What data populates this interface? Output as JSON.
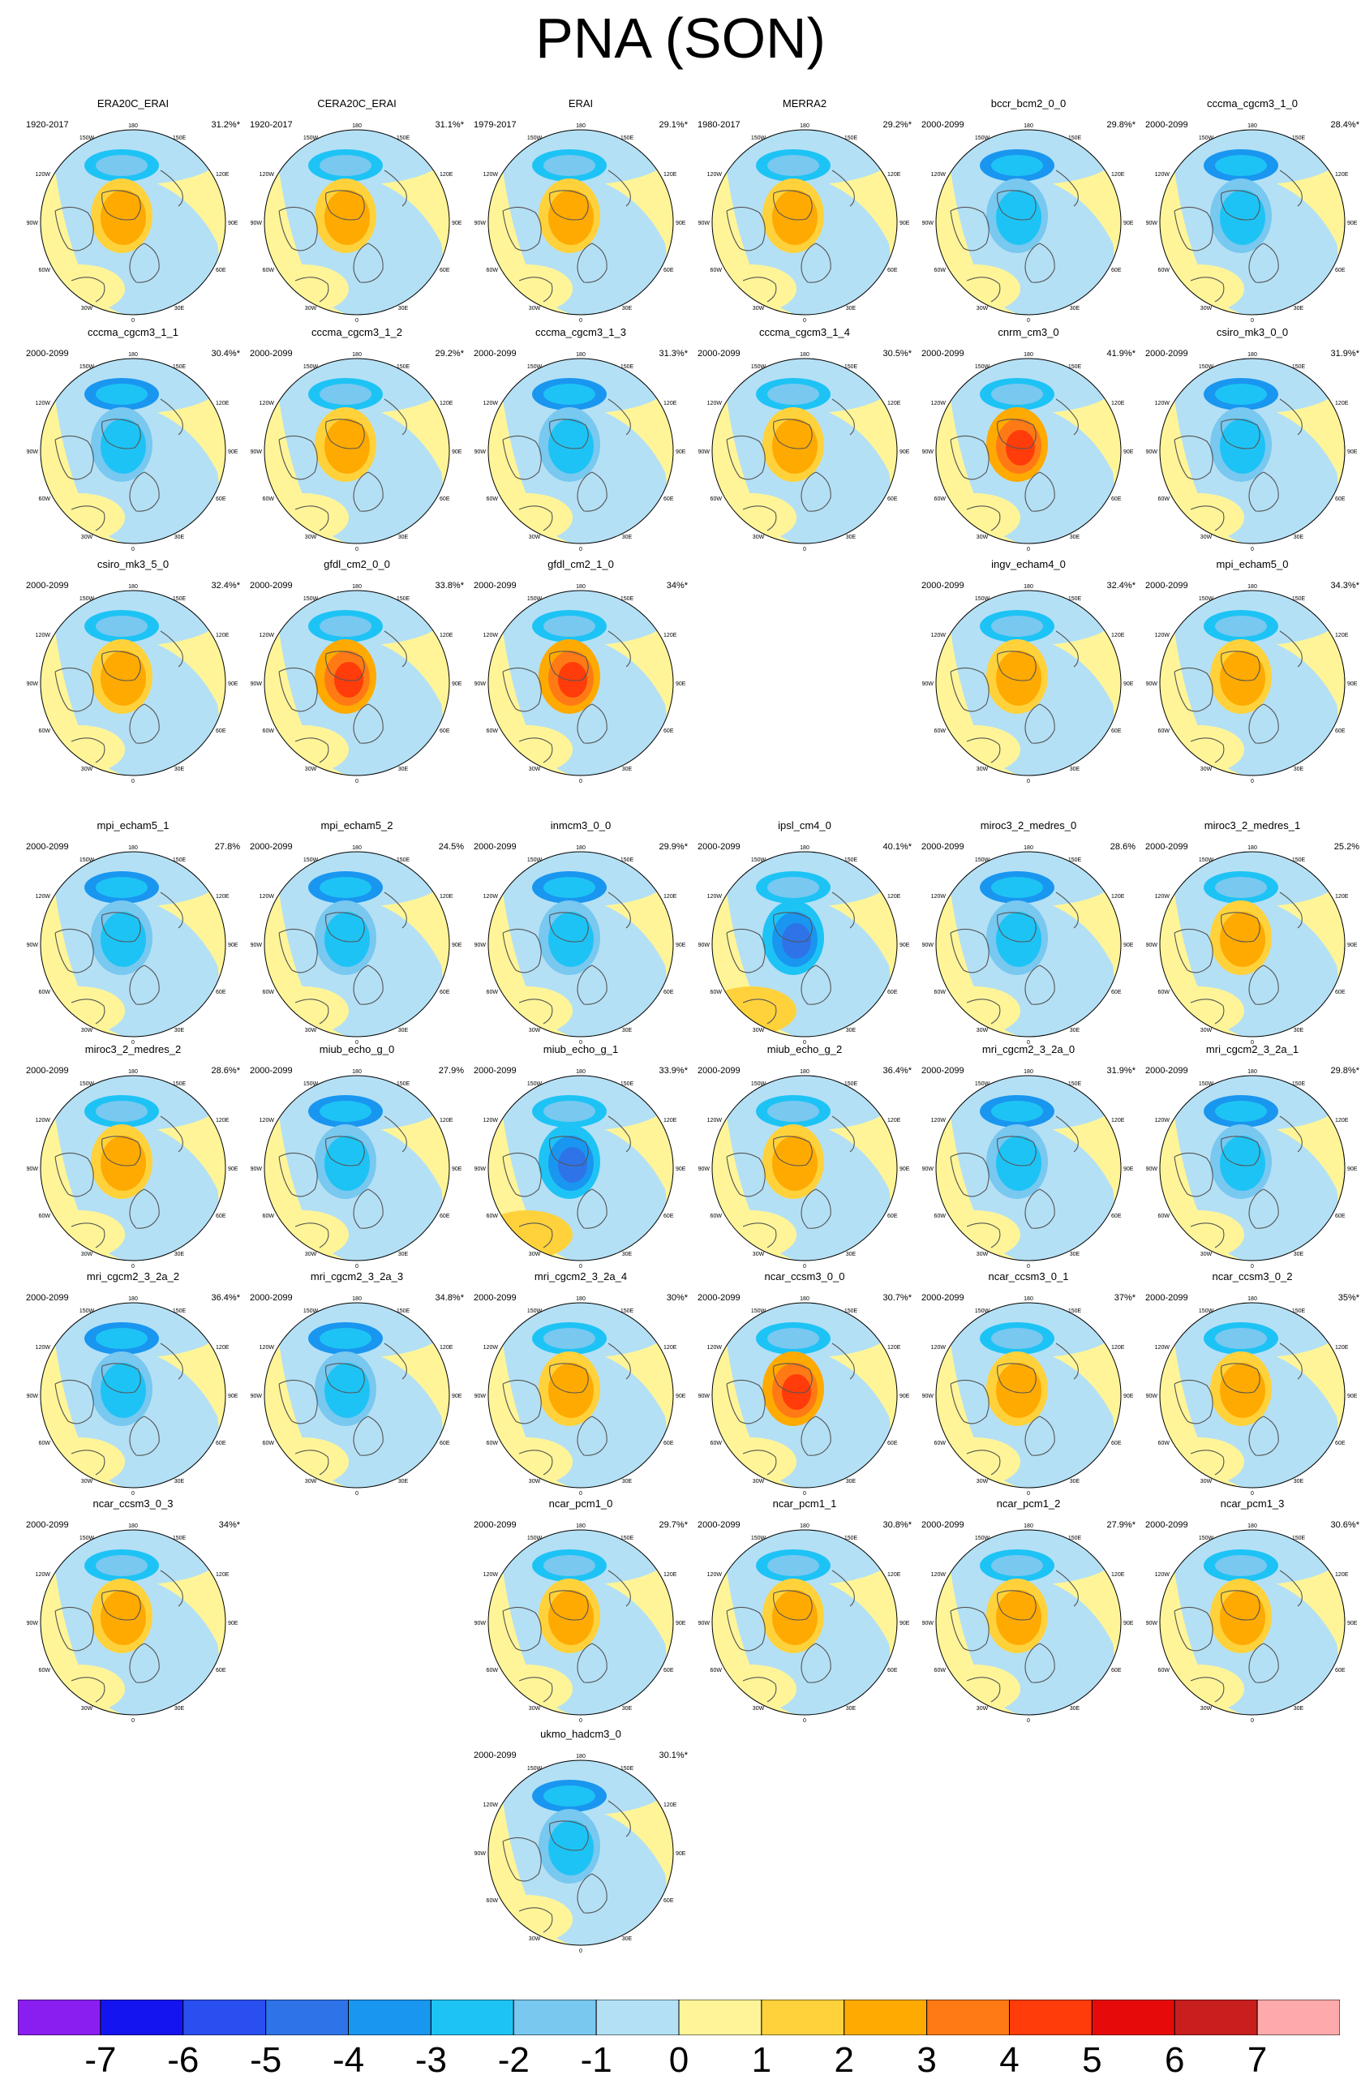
{
  "title": "PNA (SON)",
  "map_labels": {
    "top": "180",
    "bottom": "0",
    "left": "90W",
    "right": "90E",
    "upper_left": "120W",
    "upper_left_inner": "150W",
    "upper_right_inner": "150E",
    "upper_right": "120E",
    "lower_left": "60W",
    "lower_left_inner": "30W",
    "lower_right_inner": "30E",
    "lower_right": "60E"
  },
  "colors": {
    "land_outline": "#555555",
    "levels": [
      "#8a1ef0",
      "#1414f0",
      "#2a4ff0",
      "#2f73e8",
      "#1996f0",
      "#1ec3f5",
      "#78c8f0",
      "#b4e0f5",
      "#fff598",
      "#ffd23c",
      "#ffaa00",
      "#ff7a14",
      "#ff3c0a",
      "#e60a0a",
      "#c81e1e",
      "#ffaaaa"
    ]
  },
  "colorbar": {
    "labels": [
      "-7",
      "-6",
      "-5",
      "-4",
      "-3",
      "-2",
      "-1",
      "0",
      "1",
      "2",
      "3",
      "4",
      "5",
      "6",
      "7"
    ]
  },
  "panels": [
    {
      "name": "ERA20C_ERAI",
      "period": "1920-2017",
      "pct": "31.2%*",
      "row": 0,
      "col": 0,
      "pattern": "pos"
    },
    {
      "name": "CERA20C_ERAI",
      "period": "1920-2017",
      "pct": "31.1%*",
      "row": 0,
      "col": 1,
      "pattern": "pos"
    },
    {
      "name": "ERAI",
      "period": "1979-2017",
      "pct": "29.1%*",
      "row": 0,
      "col": 2,
      "pattern": "pos"
    },
    {
      "name": "MERRA2",
      "period": "1980-2017",
      "pct": "29.2%*",
      "row": 0,
      "col": 3,
      "pattern": "pos"
    },
    {
      "name": "bccr_bcm2_0_0",
      "period": "2000-2099",
      "pct": "29.8%*",
      "row": 0,
      "col": 4,
      "pattern": "neg"
    },
    {
      "name": "cccma_cgcm3_1_0",
      "period": "2000-2099",
      "pct": "28.4%*",
      "row": 0,
      "col": 5,
      "pattern": "neg"
    },
    {
      "name": "cccma_cgcm3_1_1",
      "period": "2000-2099",
      "pct": "30.4%*",
      "row": 1,
      "col": 0,
      "pattern": "neg"
    },
    {
      "name": "cccma_cgcm3_1_2",
      "period": "2000-2099",
      "pct": "29.2%*",
      "row": 1,
      "col": 1,
      "pattern": "pos"
    },
    {
      "name": "cccma_cgcm3_1_3",
      "period": "2000-2099",
      "pct": "31.3%*",
      "row": 1,
      "col": 2,
      "pattern": "neg"
    },
    {
      "name": "cccma_cgcm3_1_4",
      "period": "2000-2099",
      "pct": "30.5%*",
      "row": 1,
      "col": 3,
      "pattern": "pos"
    },
    {
      "name": "cnrm_cm3_0",
      "period": "2000-2099",
      "pct": "41.9%*",
      "row": 1,
      "col": 4,
      "pattern": "strongpos"
    },
    {
      "name": "csiro_mk3_0_0",
      "period": "2000-2099",
      "pct": "31.9%*",
      "row": 1,
      "col": 5,
      "pattern": "neg"
    },
    {
      "name": "csiro_mk3_5_0",
      "period": "2000-2099",
      "pct": "32.4%*",
      "row": 2,
      "col": 0,
      "pattern": "pos"
    },
    {
      "name": "gfdl_cm2_0_0",
      "period": "2000-2099",
      "pct": "33.8%*",
      "row": 2,
      "col": 1,
      "pattern": "strongpos"
    },
    {
      "name": "gfdl_cm2_1_0",
      "period": "2000-2099",
      "pct": "34%*",
      "row": 2,
      "col": 2,
      "pattern": "strongpos"
    },
    {
      "name": "ingv_echam4_0",
      "period": "2000-2099",
      "pct": "32.4%*",
      "row": 2,
      "col": 4,
      "pattern": "pos"
    },
    {
      "name": "mpi_echam5_0",
      "period": "2000-2099",
      "pct": "34.3%*",
      "row": 2,
      "col": 5,
      "pattern": "pos"
    },
    {
      "name": "mpi_echam5_1",
      "period": "2000-2099",
      "pct": "27.8%",
      "row": 3,
      "col": 0,
      "pattern": "neg"
    },
    {
      "name": "mpi_echam5_2",
      "period": "2000-2099",
      "pct": "24.5%",
      "row": 3,
      "col": 1,
      "pattern": "neg"
    },
    {
      "name": "inmcm3_0_0",
      "period": "2000-2099",
      "pct": "29.9%*",
      "row": 3,
      "col": 2,
      "pattern": "neg"
    },
    {
      "name": "ipsl_cm4_0",
      "period": "2000-2099",
      "pct": "40.1%*",
      "row": 3,
      "col": 3,
      "pattern": "strongneg"
    },
    {
      "name": "miroc3_2_medres_0",
      "period": "2000-2099",
      "pct": "28.6%",
      "row": 3,
      "col": 4,
      "pattern": "neg"
    },
    {
      "name": "miroc3_2_medres_1",
      "period": "2000-2099",
      "pct": "25.2%",
      "row": 3,
      "col": 5,
      "pattern": "pos"
    },
    {
      "name": "miroc3_2_medres_2",
      "period": "2000-2099",
      "pct": "28.6%*",
      "row": 4,
      "col": 0,
      "pattern": "pos"
    },
    {
      "name": "miub_echo_g_0",
      "period": "2000-2099",
      "pct": "27.9%",
      "row": 4,
      "col": 1,
      "pattern": "neg"
    },
    {
      "name": "miub_echo_g_1",
      "period": "2000-2099",
      "pct": "33.9%*",
      "row": 4,
      "col": 2,
      "pattern": "strongneg"
    },
    {
      "name": "miub_echo_g_2",
      "period": "2000-2099",
      "pct": "36.4%*",
      "row": 4,
      "col": 3,
      "pattern": "pos"
    },
    {
      "name": "mri_cgcm2_3_2a_0",
      "period": "2000-2099",
      "pct": "31.9%*",
      "row": 4,
      "col": 4,
      "pattern": "neg"
    },
    {
      "name": "mri_cgcm2_3_2a_1",
      "period": "2000-2099",
      "pct": "29.8%*",
      "row": 4,
      "col": 5,
      "pattern": "neg"
    },
    {
      "name": "mri_cgcm2_3_2a_2",
      "period": "2000-2099",
      "pct": "36.4%*",
      "row": 5,
      "col": 0,
      "pattern": "neg"
    },
    {
      "name": "mri_cgcm2_3_2a_3",
      "period": "2000-2099",
      "pct": "34.8%*",
      "row": 5,
      "col": 1,
      "pattern": "neg"
    },
    {
      "name": "mri_cgcm2_3_2a_4",
      "period": "2000-2099",
      "pct": "30%*",
      "row": 5,
      "col": 2,
      "pattern": "pos"
    },
    {
      "name": "ncar_ccsm3_0_0",
      "period": "2000-2099",
      "pct": "30.7%*",
      "row": 5,
      "col": 3,
      "pattern": "strongpos"
    },
    {
      "name": "ncar_ccsm3_0_1",
      "period": "2000-2099",
      "pct": "37%*",
      "row": 5,
      "col": 4,
      "pattern": "pos"
    },
    {
      "name": "ncar_ccsm3_0_2",
      "period": "2000-2099",
      "pct": "35%*",
      "row": 5,
      "col": 5,
      "pattern": "pos"
    },
    {
      "name": "ncar_ccsm3_0_3",
      "period": "2000-2099",
      "pct": "34%*",
      "row": 6,
      "col": 0,
      "pattern": "pos"
    },
    {
      "name": "ncar_pcm1_0",
      "period": "2000-2099",
      "pct": "29.7%*",
      "row": 6,
      "col": 2,
      "pattern": "pos"
    },
    {
      "name": "ncar_pcm1_1",
      "period": "2000-2099",
      "pct": "30.8%*",
      "row": 6,
      "col": 3,
      "pattern": "pos"
    },
    {
      "name": "ncar_pcm1_2",
      "period": "2000-2099",
      "pct": "27.9%*",
      "row": 6,
      "col": 4,
      "pattern": "pos"
    },
    {
      "name": "ncar_pcm1_3",
      "period": "2000-2099",
      "pct": "30.6%*",
      "row": 6,
      "col": 5,
      "pattern": "pos"
    },
    {
      "name": "ukmo_hadcm3_0",
      "period": "2000-2099",
      "pct": "30.1%*",
      "row": 7,
      "col": 2,
      "pattern": "neg"
    }
  ]
}
